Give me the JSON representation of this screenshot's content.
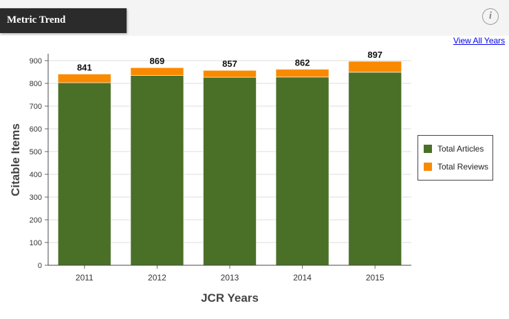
{
  "header": {
    "tab_title": "Metric Trend",
    "info_icon": "info-icon",
    "view_all_label": "View All Years"
  },
  "colors": {
    "articles": "#4a7028",
    "reviews": "#f98a00"
  },
  "chart_data": {
    "type": "bar",
    "stacked": true,
    "categories": [
      "2011",
      "2012",
      "2013",
      "2014",
      "2015"
    ],
    "series": [
      {
        "name": "Total Articles",
        "values": [
          803,
          835,
          827,
          828,
          849
        ]
      },
      {
        "name": "Total Reviews",
        "values": [
          38,
          34,
          30,
          34,
          48
        ]
      }
    ],
    "totals": [
      841,
      869,
      857,
      862,
      897
    ],
    "total_labels": [
      "841",
      "869",
      "857",
      "862",
      "897"
    ],
    "xlabel": "JCR Years",
    "ylabel": "Citable Items",
    "ylim": [
      0,
      900
    ],
    "yticks": [
      "0",
      "100",
      "200",
      "300",
      "400",
      "500",
      "600",
      "700",
      "800",
      "900"
    ],
    "grid": true,
    "legend_position": "right"
  }
}
